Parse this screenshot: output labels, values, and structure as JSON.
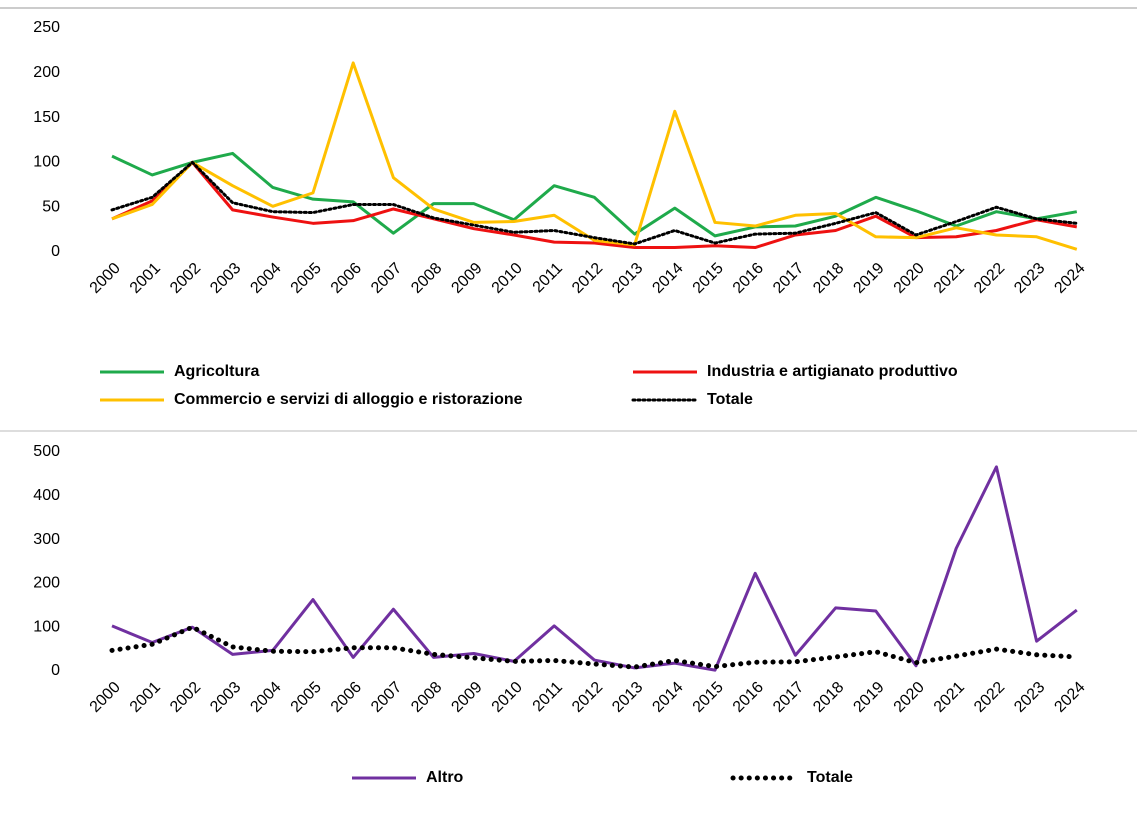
{
  "chart_data": [
    {
      "type": "line",
      "categories": [
        "2000",
        "2001",
        "2002",
        "2003",
        "2004",
        "2005",
        "2006",
        "2007",
        "2008",
        "2009",
        "2010",
        "2011",
        "2012",
        "2013",
        "2014",
        "2015",
        "2016",
        "2017",
        "2018",
        "2019",
        "2020",
        "2021",
        "2022",
        "2023",
        "2024"
      ],
      "series": [
        {
          "name": "Agricoltura",
          "color": "#1faa4b",
          "values": [
            107,
            86,
            100,
            110,
            72,
            59,
            56,
            21,
            54,
            54,
            36,
            74,
            61,
            20,
            49,
            18,
            28,
            29,
            40,
            61,
            46,
            29,
            45,
            37,
            45
          ]
        },
        {
          "name": "Industria e artigianato produttivo",
          "color": "#ee1111",
          "values": [
            37,
            57,
            100,
            47,
            39,
            32,
            35,
            48,
            37,
            26,
            19,
            11,
            10,
            5,
            5,
            7,
            5,
            19,
            24,
            40,
            16,
            17,
            24,
            36,
            28
          ]
        },
        {
          "name": "Commercio e servizi di alloggio e ristorazione",
          "color": "#ffc000",
          "values": [
            37,
            53,
            100,
            74,
            51,
            66,
            211,
            83,
            48,
            33,
            34,
            41,
            13,
            8,
            157,
            33,
            29,
            41,
            43,
            17,
            16,
            27,
            19,
            17,
            3
          ]
        },
        {
          "name": "Totale",
          "color": "#000000",
          "style": "dotted",
          "values": [
            47,
            61,
            100,
            55,
            45,
            44,
            53,
            53,
            38,
            30,
            22,
            24,
            16,
            9,
            24,
            10,
            20,
            21,
            32,
            44,
            19,
            34,
            50,
            37,
            32
          ]
        }
      ],
      "ylim": [
        0,
        250
      ],
      "yticks": [
        0,
        50,
        100,
        150,
        200,
        250
      ],
      "grid": false
    },
    {
      "type": "line",
      "categories": [
        "2000",
        "2001",
        "2002",
        "2003",
        "2004",
        "2005",
        "2006",
        "2007",
        "2008",
        "2009",
        "2010",
        "2011",
        "2012",
        "2013",
        "2014",
        "2015",
        "2016",
        "2017",
        "2018",
        "2019",
        "2020",
        "2021",
        "2022",
        "2023",
        "2024"
      ],
      "series": [
        {
          "name": "Altro",
          "color": "#7030a0",
          "values": [
            103,
            65,
            100,
            38,
            47,
            163,
            31,
            141,
            31,
            40,
            22,
            103,
            25,
            7,
            18,
            2,
            223,
            36,
            144,
            137,
            12,
            280,
            466,
            68,
            139
          ]
        },
        {
          "name": "Totale",
          "color": "#000000",
          "style": "dotted",
          "values": [
            47,
            61,
            100,
            55,
            45,
            44,
            53,
            53,
            38,
            30,
            22,
            24,
            16,
            9,
            24,
            10,
            20,
            21,
            32,
            44,
            19,
            34,
            50,
            37,
            32
          ]
        }
      ],
      "ylim": [
        0,
        500
      ],
      "yticks": [
        0,
        100,
        200,
        300,
        400,
        500
      ],
      "grid": false
    }
  ]
}
